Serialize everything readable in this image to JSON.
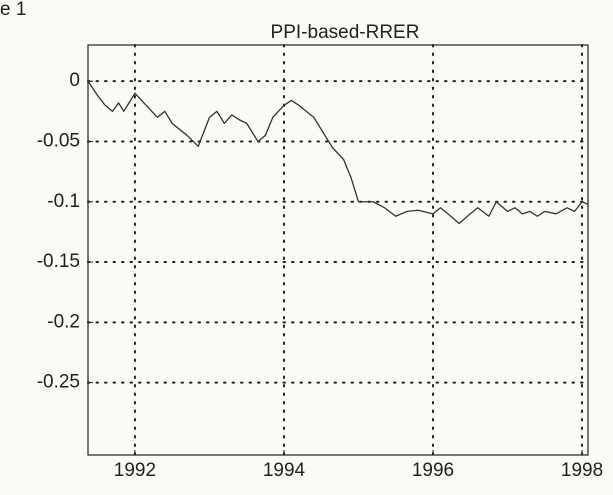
{
  "figure_label": "e 1",
  "chart_data": {
    "type": "line",
    "title": "PPI-based-RRER",
    "x": [
      1991.37,
      1991.5,
      1991.6,
      1991.7,
      1991.78,
      1991.85,
      1992.0,
      1992.15,
      1992.3,
      1992.4,
      1992.5,
      1992.7,
      1992.85,
      1993.0,
      1993.1,
      1993.2,
      1993.3,
      1993.4,
      1993.5,
      1993.65,
      1993.75,
      1993.85,
      1994.0,
      1994.1,
      1994.2,
      1994.3,
      1994.4,
      1994.5,
      1994.65,
      1994.8,
      1994.9,
      1995.0,
      1995.2,
      1995.35,
      1995.5,
      1995.65,
      1995.8,
      1996.0,
      1996.1,
      1996.2,
      1996.35,
      1996.5,
      1996.6,
      1996.75,
      1996.85,
      1997.0,
      1997.1,
      1997.2,
      1997.3,
      1997.4,
      1997.5,
      1997.65,
      1997.8,
      1997.9,
      1998.0,
      1998.08
    ],
    "series": [
      {
        "name": "PPI-based-RRER",
        "color": "#333333",
        "values": [
          0,
          -0.012,
          -0.02,
          -0.025,
          -0.018,
          -0.025,
          -0.01,
          -0.02,
          -0.03,
          -0.025,
          -0.035,
          -0.045,
          -0.054,
          -0.03,
          -0.025,
          -0.035,
          -0.028,
          -0.032,
          -0.035,
          -0.05,
          -0.045,
          -0.03,
          -0.02,
          -0.016,
          -0.02,
          -0.025,
          -0.03,
          -0.04,
          -0.055,
          -0.065,
          -0.08,
          -0.1,
          -0.1,
          -0.105,
          -0.112,
          -0.108,
          -0.107,
          -0.11,
          -0.105,
          -0.11,
          -0.118,
          -0.11,
          -0.105,
          -0.112,
          -0.1,
          -0.108,
          -0.105,
          -0.11,
          -0.108,
          -0.112,
          -0.108,
          -0.11,
          -0.105,
          -0.108,
          -0.1,
          -0.102
        ]
      }
    ],
    "xlim": [
      1991.37,
      1998.08
    ],
    "xticks": [
      1992,
      1994,
      1996,
      1998
    ],
    "ylim": [
      -0.31,
      0.03
    ],
    "yticks": [
      0,
      -0.05,
      -0.1,
      -0.15,
      -0.2,
      -0.25
    ],
    "grid": true
  }
}
